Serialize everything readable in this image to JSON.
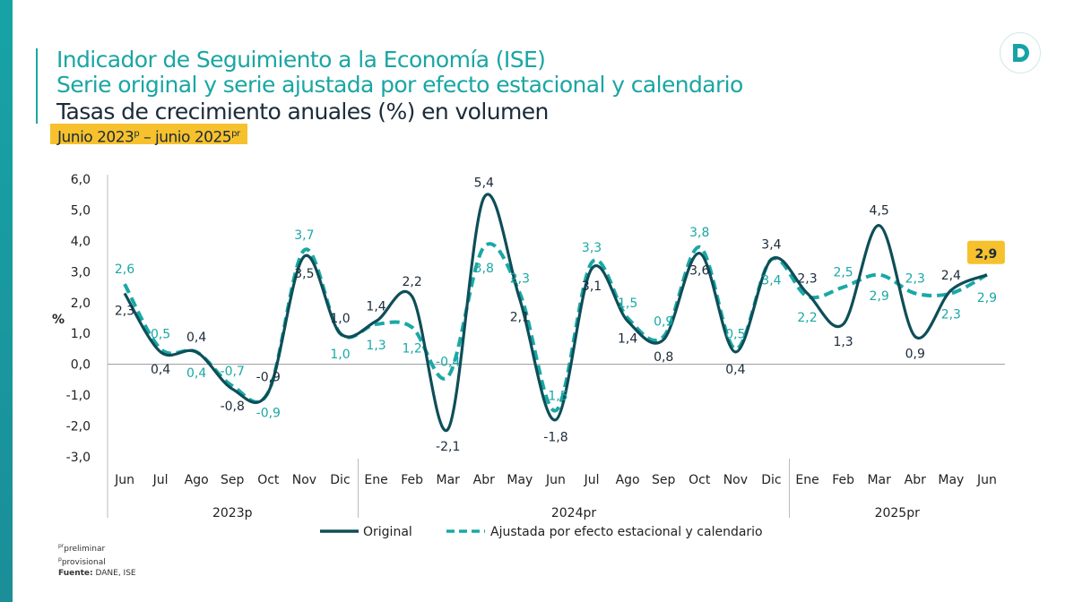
{
  "header": {
    "title": "Indicador de Seguimiento a la Economía (ISE)",
    "subtitle": "Serie original y serie ajustada por efecto estacional y calendario",
    "subtitle2": "Tasas de crecimiento anuales (%) en volumen",
    "period_a": "Junio 2023",
    "period_sup_a": "p",
    "period_b": " – junio 2025",
    "period_sup_b": "pr"
  },
  "logo": {
    "letter": "D"
  },
  "notes": {
    "pr_sup": "pr",
    "pr": "preliminar",
    "p_sup": "p",
    "p": "provisional",
    "source_label": "Fuente:",
    "source": " DANE, ISE"
  },
  "colors": {
    "original": "#0e4e58",
    "adjusted": "#1aa8a5",
    "highlight": "#f6c12d"
  },
  "chart_data": {
    "type": "line",
    "ylabel": "%",
    "ylim": [
      -3.0,
      6.0
    ],
    "yticks": [
      "6,0",
      "5,0",
      "4,0",
      "3,0",
      "2,0",
      "1,0",
      "0,0",
      "-1,0",
      "-2,0",
      "-3,0"
    ],
    "categories": [
      "Jun",
      "Jul",
      "Ago",
      "Sep",
      "Oct",
      "Nov",
      "Dic",
      "Ene",
      "Feb",
      "Mar",
      "Abr",
      "May",
      "Jun",
      "Jul",
      "Ago",
      "Sep",
      "Oct",
      "Nov",
      "Dic",
      "Ene",
      "Feb",
      "Mar",
      "Abr",
      "May",
      "Jun"
    ],
    "groups": [
      {
        "label": "2023p",
        "count": 7
      },
      {
        "label": "2024pr",
        "count": 12
      },
      {
        "label": "2025pr",
        "count": 6
      }
    ],
    "series": [
      {
        "name": "Original",
        "style": "solid",
        "values": [
          2.3,
          0.4,
          0.4,
          -0.8,
          -0.9,
          3.5,
          1.0,
          1.4,
          2.2,
          -2.1,
          5.4,
          2.1,
          -1.8,
          3.1,
          1.4,
          0.8,
          3.6,
          0.4,
          3.4,
          2.3,
          1.3,
          4.5,
          0.9,
          2.4,
          2.9
        ]
      },
      {
        "name": "Ajustada por efecto estacional y calendario",
        "style": "dashed",
        "values": [
          2.6,
          0.5,
          0.4,
          -0.7,
          -0.9,
          3.7,
          1.0,
          1.3,
          1.2,
          -0.4,
          3.8,
          2.3,
          -1.5,
          3.3,
          1.5,
          0.9,
          3.8,
          0.5,
          3.4,
          2.2,
          2.5,
          2.9,
          2.3,
          2.3,
          2.9
        ]
      }
    ],
    "legend": "bottom",
    "highlight_label": "2,9"
  }
}
